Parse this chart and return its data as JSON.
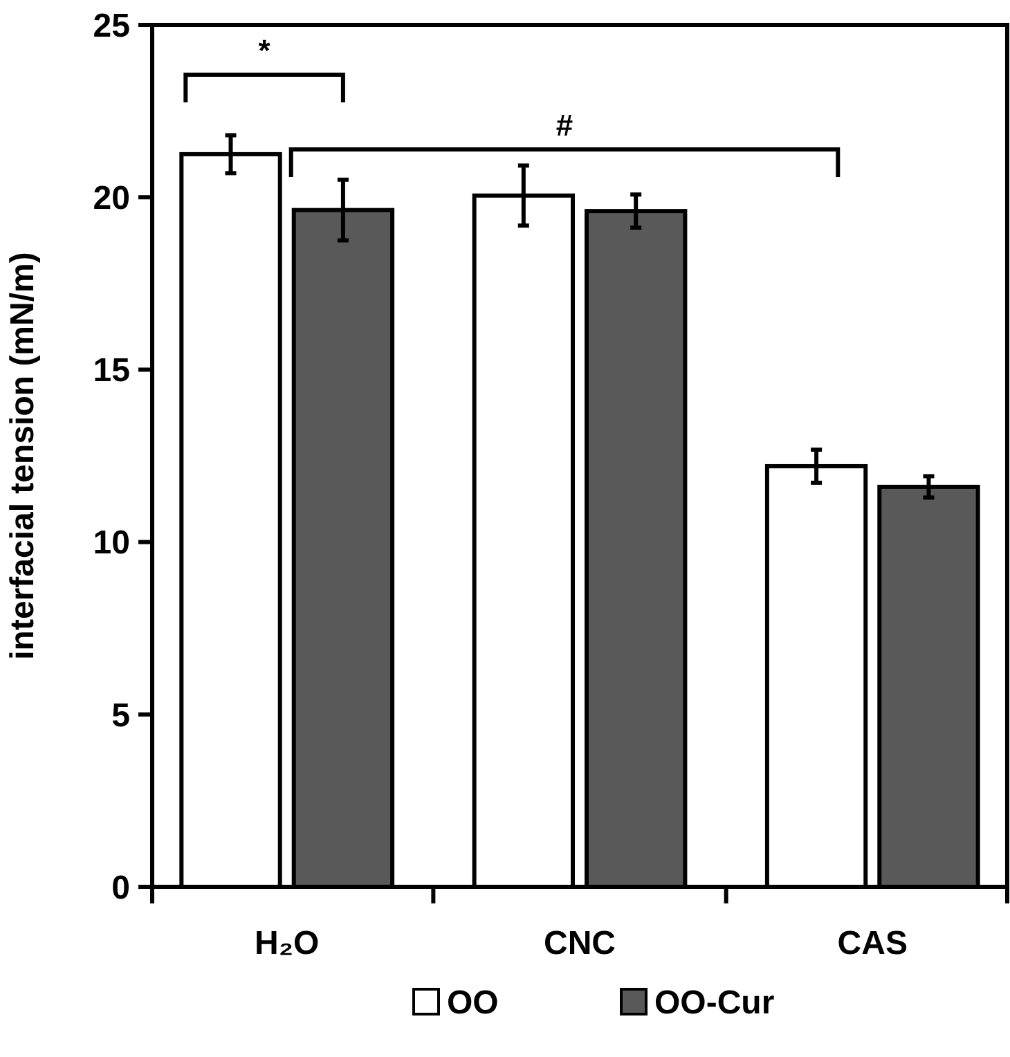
{
  "chart_data": {
    "type": "bar",
    "ylabel": "interfacial tension (mN/m)",
    "categories": [
      "H₂O",
      "CNC",
      "CAS"
    ],
    "series": [
      {
        "name": "OO",
        "color": "#ffffff",
        "values": [
          21.25,
          20.05,
          12.2
        ],
        "errors": [
          0.55,
          0.87,
          0.48
        ]
      },
      {
        "name": "OO-Cur",
        "color": "#595959",
        "values": [
          19.63,
          19.6,
          11.6
        ],
        "errors": [
          0.88,
          0.48,
          0.31
        ]
      }
    ],
    "ylim": [
      0,
      25
    ],
    "yticks": [
      0,
      5,
      10,
      15,
      20,
      25
    ],
    "grid": false,
    "legend": "bottom",
    "annotations": [
      "*",
      "#"
    ]
  }
}
